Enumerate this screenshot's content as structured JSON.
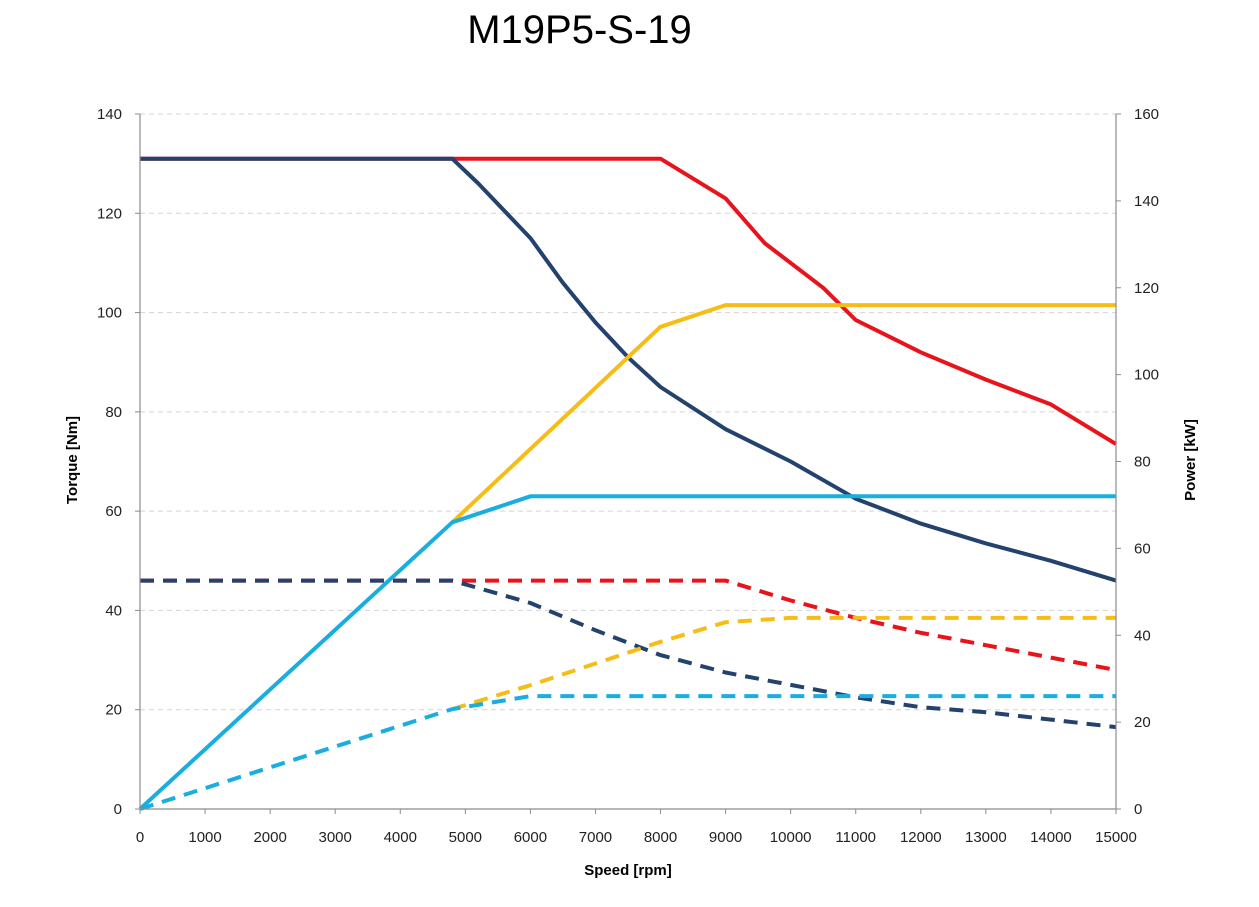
{
  "chart_data": {
    "type": "line",
    "title": "M19P5-S-19",
    "xlabel": "Speed [rpm]",
    "ylabel": "Torque [Nm]",
    "y2label": "Power [kW]",
    "xlim": [
      0,
      15000
    ],
    "ylim": [
      0,
      140
    ],
    "y2lim": [
      0,
      160
    ],
    "xticks": [
      "0",
      "1000",
      "2000",
      "3000",
      "4000",
      "5000",
      "6000",
      "7000",
      "8000",
      "9000",
      "10000",
      "11000",
      "12000",
      "13000",
      "14000",
      "15000"
    ],
    "yticks": [
      "0",
      "20",
      "40",
      "60",
      "80",
      "100",
      "120",
      "140"
    ],
    "y2ticks": [
      "0",
      "20",
      "40",
      "60",
      "80",
      "100",
      "120",
      "140",
      "160"
    ],
    "grid": true,
    "colors": {
      "red": "#e8141b",
      "navy": "#23426e",
      "yellow": "#f5bd16",
      "cyan": "#1aaee0"
    },
    "series": [
      {
        "axis": "torque",
        "style": "solid",
        "color": "#e8141b",
        "x": [
          0,
          8000,
          9000,
          9600,
          10500,
          11000,
          12000,
          13000,
          14000,
          15000
        ],
        "y": [
          131,
          131,
          123,
          114,
          105,
          98.5,
          92,
          86.5,
          81.5,
          73.5
        ]
      },
      {
        "axis": "torque",
        "style": "solid",
        "color": "#23426e",
        "x": [
          0,
          4800,
          5200,
          6000,
          6500,
          7000,
          7500,
          8000,
          9000,
          10000,
          11000,
          12000,
          13000,
          14000,
          15000
        ],
        "y": [
          131,
          131,
          126,
          115,
          106,
          98,
          91,
          85,
          76.5,
          70,
          62.5,
          57.5,
          53.5,
          50,
          46
        ]
      },
      {
        "axis": "power",
        "style": "solid",
        "color": "#f5bd16",
        "x": [
          4800,
          8000,
          9000,
          15000
        ],
        "y": [
          66,
          111,
          116,
          116
        ]
      },
      {
        "axis": "power",
        "style": "solid",
        "color": "#1aaee0",
        "x": [
          0,
          4800,
          6000,
          15000
        ],
        "y": [
          0,
          66,
          72,
          72
        ]
      },
      {
        "axis": "torque",
        "style": "dashed",
        "color": "#e8141b",
        "x": [
          0,
          9000,
          10000,
          11000,
          12000,
          13000,
          14000,
          15000
        ],
        "y": [
          46,
          46,
          42,
          38.5,
          35.5,
          33,
          30.5,
          28
        ]
      },
      {
        "axis": "torque",
        "style": "dashed",
        "color": "#23426e",
        "x": [
          0,
          4800,
          6000,
          7000,
          8000,
          9000,
          10000,
          11000,
          12000,
          13000,
          14000,
          15000
        ],
        "y": [
          46,
          46,
          41.5,
          36,
          31,
          27.5,
          25,
          22.5,
          20.5,
          19.5,
          18,
          16.5
        ]
      },
      {
        "axis": "power",
        "style": "dashed",
        "color": "#f5bd16",
        "x": [
          4800,
          6000,
          7000,
          8000,
          9000,
          10000,
          15000
        ],
        "y": [
          23,
          28.5,
          33.5,
          38.5,
          43,
          44,
          44
        ]
      },
      {
        "axis": "power",
        "style": "dashed",
        "color": "#1aaee0",
        "x": [
          0,
          4800,
          6000,
          15000
        ],
        "y": [
          0,
          23,
          26,
          26
        ]
      }
    ]
  }
}
